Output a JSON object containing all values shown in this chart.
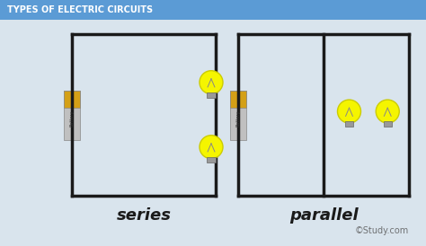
{
  "title": "TYPES OF ELECTRIC CIRCUITS",
  "title_bg": "#5b9bd5",
  "title_color": "white",
  "bg_color": "#d9e4ed",
  "wire_color": "#1a1a1a",
  "wire_lw": 2.5,
  "battery_color_top": "#d4a017",
  "battery_color_body": "#b0b0b0",
  "bulb_body_color": "#f5f500",
  "bulb_cap_color": "#888888",
  "series_label": "series",
  "parallel_label": "parallel",
  "watermark": "©Study.com",
  "label_fontsize": 13,
  "watermark_fontsize": 7
}
